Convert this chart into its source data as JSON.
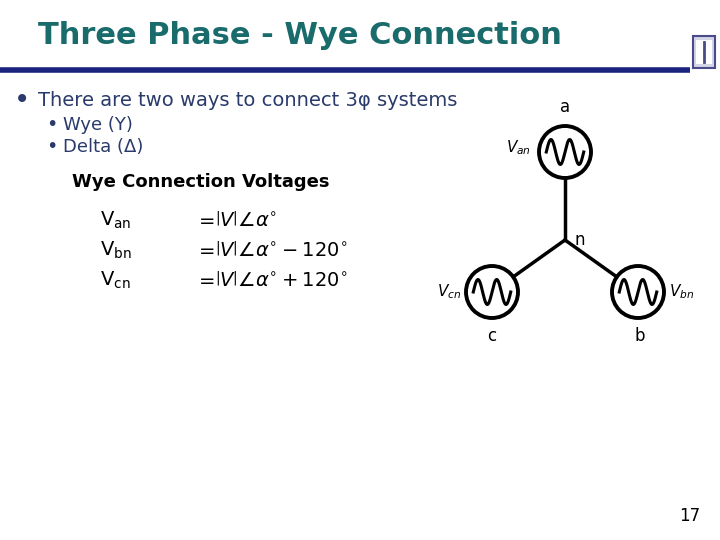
{
  "title": "Three Phase - Wye Connection",
  "title_color": "#1a6b6b",
  "title_fontsize": 22,
  "bg_color": "#ffffff",
  "header_bar_color": "#1a237e",
  "bullet1": "There are two ways to connect 3φ systems",
  "bullet1_color": "#2a3a6a",
  "bullet2a": "Wye (Y)",
  "bullet2b": "Delta (Δ)",
  "bullet2_color": "#2a3a6a",
  "section_title": "Wye Connection Voltages",
  "page_number": "17",
  "node_a": "a",
  "node_b": "b",
  "node_c": "c",
  "node_n": "n"
}
